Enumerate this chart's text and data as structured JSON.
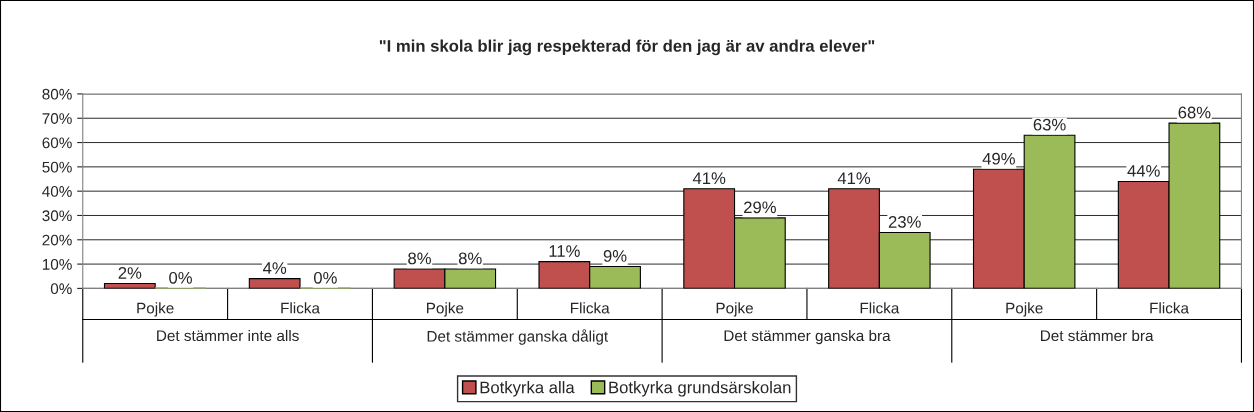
{
  "chart_data": {
    "type": "bar",
    "title": "\"I min skola blir jag respekterad för den jag är av andra elever\"",
    "categories": [
      "Pojke",
      "Flicka",
      "Pojke",
      "Flicka",
      "Pojke",
      "Flicka",
      "Pojke",
      "Flicka"
    ],
    "annotations": [
      "Det stämmer inte alls",
      "Det stämmer ganska dåligt",
      "Det stämmer ganska bra",
      "Det stämmer bra"
    ],
    "series": [
      {
        "name": "Botkyrka alla",
        "color": "#c0504d",
        "values": [
          2,
          4,
          8,
          11,
          41,
          41,
          49,
          44
        ],
        "value_labels": [
          "2%",
          "4%",
          "8%",
          "11%",
          "41%",
          "41%",
          "49%",
          "44%"
        ]
      },
      {
        "name": "Botkyrka grundsärskolan",
        "color": "#9bbb59",
        "values": [
          0,
          0,
          8,
          9,
          29,
          23,
          63,
          68
        ],
        "value_labels": [
          "0%",
          "0%",
          "8%",
          "9%",
          "29%",
          "23%",
          "63%",
          "68%"
        ]
      }
    ],
    "ylim": [
      0,
      80
    ],
    "yticks": [
      {
        "value": 0,
        "label": "0%"
      },
      {
        "value": 10,
        "label": "10%"
      },
      {
        "value": 20,
        "label": "20%"
      },
      {
        "value": 30,
        "label": "30%"
      },
      {
        "value": 40,
        "label": "40%"
      },
      {
        "value": 50,
        "label": "50%"
      },
      {
        "value": 60,
        "label": "60%"
      },
      {
        "value": 70,
        "label": "70%"
      },
      {
        "value": 80,
        "label": "80%"
      }
    ],
    "grid": "y",
    "legend": "bottom"
  }
}
